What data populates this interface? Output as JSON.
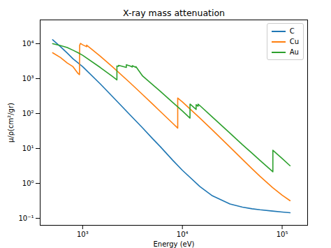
{
  "chart_data": {
    "type": "line",
    "title": "X-ray mass attenuation",
    "x_label": "Energy (eV)",
    "y_label": "μ/ρ(cm²/gr)",
    "log": true,
    "grid": false,
    "legend": "upper right",
    "xlim": [
      375,
      180000
    ],
    "ylim": [
      0.063,
      48000
    ],
    "xticks": [
      {
        "value": 1000,
        "label": "10³"
      },
      {
        "value": 10000,
        "label": "10⁴"
      },
      {
        "value": 100000,
        "label": "10⁵"
      }
    ],
    "yticks": [
      {
        "value": 0.1,
        "label": "10⁻¹"
      },
      {
        "value": 1,
        "label": "10⁰"
      },
      {
        "value": 10,
        "label": "10¹"
      },
      {
        "value": 100,
        "label": "10²"
      },
      {
        "value": 1000,
        "label": "10³"
      },
      {
        "value": 10000,
        "label": "10⁴"
      }
    ],
    "series": [
      {
        "name": "C",
        "color": "#1f77b4",
        "x": [
          500,
          600,
          700,
          800,
          1000,
          1500,
          2000,
          3000,
          4000,
          5000,
          6000,
          8000,
          10000,
          15000,
          20000,
          30000,
          40000,
          50000,
          60000,
          80000,
          100000,
          120000
        ],
        "values": [
          13000,
          8200,
          5400,
          3700,
          2210,
          710,
          302,
          90,
          38.5,
          19.4,
          11.3,
          4.6,
          2.37,
          0.81,
          0.44,
          0.256,
          0.208,
          0.187,
          0.175,
          0.161,
          0.151,
          0.144
        ]
      },
      {
        "name": "Cu",
        "color": "#ff7f0e",
        "x": [
          500,
          600,
          700,
          800,
          900,
          930,
          933,
          952,
          1000,
          1096,
          1096,
          1200,
          1500,
          2000,
          3000,
          4000,
          5000,
          6000,
          8000,
          8979,
          8979,
          10000,
          15000,
          20000,
          30000,
          40000,
          50000,
          60000,
          80000,
          100000,
          120000
        ],
        "values": [
          5500,
          4000,
          2800,
          2200,
          1400,
          1300,
          9000,
          10200,
          9300,
          8200,
          9100,
          7400,
          4400,
          2150,
          750,
          347,
          189,
          115,
          52.6,
          38.3,
          278,
          216,
          74,
          33.8,
          10.9,
          4.86,
          2.61,
          1.59,
          0.76,
          0.458,
          0.32
        ]
      },
      {
        "name": "Au",
        "color": "#2ca02c",
        "x": [
          500,
          600,
          700,
          800,
          900,
          1000,
          1500,
          2000,
          2206,
          2206,
          2291,
          2291,
          2743,
          2743,
          3000,
          3148,
          3148,
          3425,
          3425,
          4000,
          5000,
          6000,
          8000,
          10000,
          11919,
          11919,
          13734,
          13734,
          14353,
          14353,
          15000,
          20000,
          30000,
          40000,
          50000,
          60000,
          80000,
          80725,
          80725,
          100000,
          120000
        ],
        "values": [
          10000,
          8800,
          7800,
          6500,
          5500,
          4650,
          2090,
          1140,
          920,
          2300,
          2250,
          2400,
          2100,
          2500,
          2300,
          2150,
          2350,
          2100,
          2200,
          1180,
          683,
          434,
          208,
          118,
          74,
          187,
          131,
          179,
          162,
          186,
          168,
          78.8,
          27.5,
          12.8,
          7.26,
          4.53,
          2.19,
          2.14,
          8.9,
          5.16,
          3.2
        ]
      }
    ]
  }
}
